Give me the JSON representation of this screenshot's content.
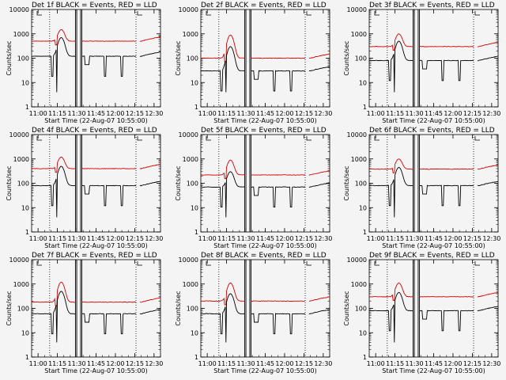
{
  "figure": {
    "background": "#f4f4f4",
    "colors": {
      "events": "#000000",
      "lld": "#d40000",
      "axes": "#000000"
    },
    "xtick_labels": [
      "11:00",
      "11:15",
      "11:30",
      "11:45",
      "12:00",
      "12:15",
      "12:30"
    ],
    "ytick_labels": [
      "1",
      "10",
      "100",
      "1000",
      "10000"
    ],
    "xlabel": "Start Time (22-Aug-07 10:55:00)",
    "ylabel": "Counts/sec"
  },
  "chart_data": [
    {
      "type": "line",
      "title": "Det 1f BLACK = Events, RED = LLD",
      "yscale": "log",
      "ylim": [
        1,
        10000
      ],
      "xlim": [
        "10:55",
        "12:35"
      ],
      "lld_base": 500,
      "events_base": 120,
      "lld_peak": 1500,
      "events_peak": 700
    },
    {
      "type": "line",
      "title": "Det 2f BLACK = Events, RED = LLD",
      "yscale": "log",
      "ylim": [
        1,
        10000
      ],
      "xlim": [
        "10:55",
        "12:35"
      ],
      "lld_base": 100,
      "events_base": 30,
      "lld_peak": 900,
      "events_peak": 300
    },
    {
      "type": "line",
      "title": "Det 3f BLACK = Events, RED = LLD",
      "yscale": "log",
      "ylim": [
        1,
        10000
      ],
      "xlim": [
        "10:55",
        "12:35"
      ],
      "lld_base": 300,
      "events_base": 80,
      "lld_peak": 1000,
      "events_peak": 500
    },
    {
      "type": "line",
      "title": "Det 4f BLACK = Events, RED = LLD",
      "yscale": "log",
      "ylim": [
        1,
        10000
      ],
      "xlim": [
        "10:55",
        "12:35"
      ],
      "lld_base": 400,
      "events_base": 80,
      "lld_peak": 1200,
      "events_peak": 500
    },
    {
      "type": "line",
      "title": "Det 5f BLACK = Events, RED = LLD",
      "yscale": "log",
      "ylim": [
        1,
        10000
      ],
      "xlim": [
        "10:55",
        "12:35"
      ],
      "lld_base": 220,
      "events_base": 70,
      "lld_peak": 900,
      "events_peak": 300
    },
    {
      "type": "line",
      "title": "Det 6f BLACK = Events, RED = LLD",
      "yscale": "log",
      "ylim": [
        1,
        10000
      ],
      "xlim": [
        "10:55",
        "12:35"
      ],
      "lld_base": 380,
      "events_base": 80,
      "lld_peak": 1000,
      "events_peak": 450
    },
    {
      "type": "line",
      "title": "Det 7f BLACK = Events, RED = LLD",
      "yscale": "log",
      "ylim": [
        1,
        10000
      ],
      "xlim": [
        "10:55",
        "12:35"
      ],
      "lld_base": 180,
      "events_base": 60,
      "lld_peak": 1200,
      "events_peak": 500
    },
    {
      "type": "line",
      "title": "Det 8f BLACK = Events, RED = LLD",
      "yscale": "log",
      "ylim": [
        1,
        10000
      ],
      "xlim": [
        "10:55",
        "12:35"
      ],
      "lld_base": 200,
      "events_base": 60,
      "lld_peak": 1100,
      "events_peak": 400
    },
    {
      "type": "line",
      "title": "Det 9f BLACK = Events, RED = LLD",
      "yscale": "log",
      "ylim": [
        1,
        10000
      ],
      "xlim": [
        "10:55",
        "12:35"
      ],
      "lld_base": 300,
      "events_base": 80,
      "lld_peak": 1100,
      "events_peak": 450
    }
  ]
}
